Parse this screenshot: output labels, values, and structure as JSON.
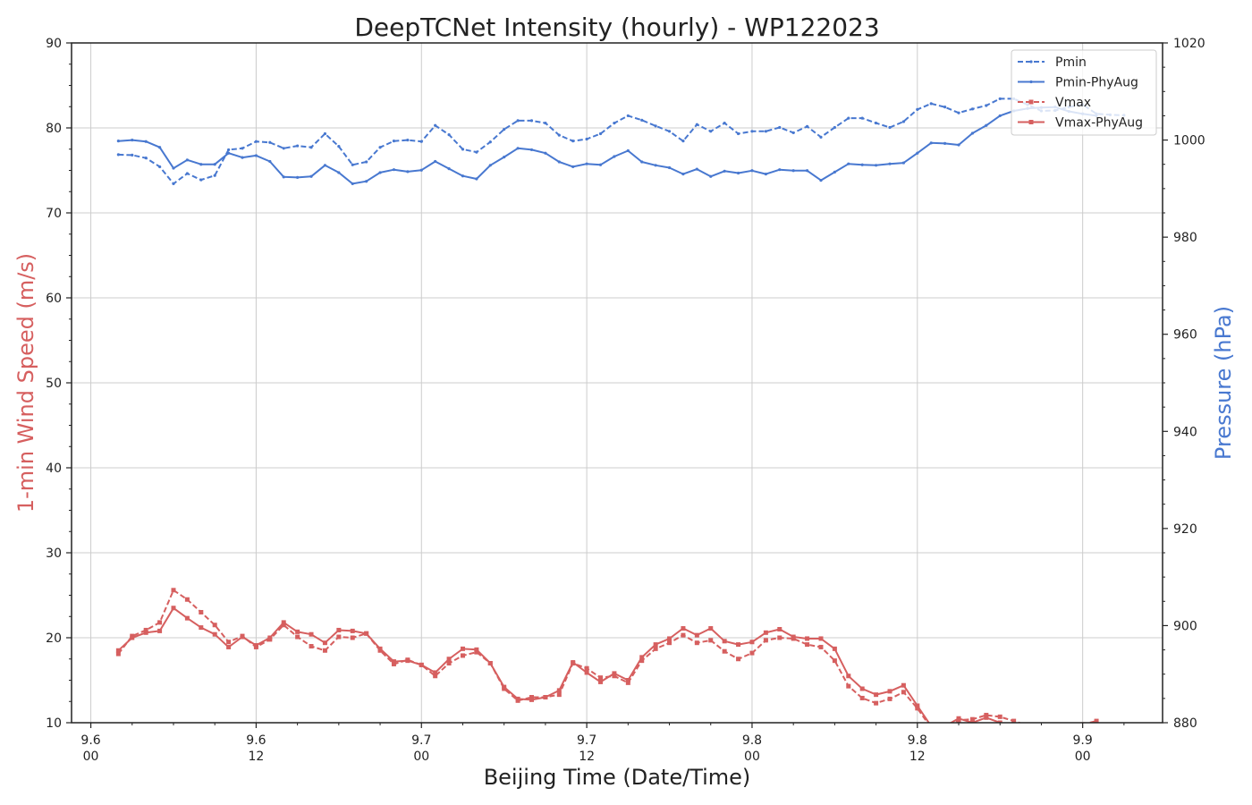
{
  "chart_data": {
    "type": "line",
    "title": "DeepTCNet Intensity (hourly) - WP122023",
    "xlabel": "Beijing Time (Date/Time)",
    "ylabel_left": "1-min Wind Speed (m/s)",
    "ylabel_right": "Pressure (hPa)",
    "x_ticks": [
      {
        "hour": 0,
        "date": "9.6",
        "time": "00"
      },
      {
        "hour": 12,
        "date": "9.6",
        "time": "12"
      },
      {
        "hour": 24,
        "date": "9.7",
        "time": "00"
      },
      {
        "hour": 36,
        "date": "9.7",
        "time": "12"
      },
      {
        "hour": 48,
        "date": "9.8",
        "time": "00"
      },
      {
        "hour": 60,
        "date": "9.8",
        "time": "12"
      },
      {
        "hour": 72,
        "date": "9.9",
        "time": "00"
      }
    ],
    "x_range_hours": [
      -1.4,
      77.8
    ],
    "ylim_left": [
      10,
      90
    ],
    "yticks_left": [
      10,
      20,
      30,
      40,
      50,
      60,
      70,
      80,
      90
    ],
    "ylim_right": [
      880,
      1020
    ],
    "yticks_right": [
      880,
      900,
      920,
      940,
      960,
      980,
      1000,
      1020
    ],
    "grid": true,
    "legend_position": "top-right",
    "colors": {
      "wind": "#d65f5f",
      "pressure": "#4878d0"
    },
    "series": [
      {
        "name": "Pmin",
        "axis": "right",
        "style": "dashed",
        "color": "#4878d0",
        "start_hour": 2,
        "values": [
          997.0,
          996.9,
          996.3,
          994.5,
          991.0,
          993.1,
          991.8,
          992.7,
          998.0,
          998.3,
          999.7,
          999.5,
          998.3,
          998.8,
          998.5,
          1001.3,
          998.7,
          994.9,
          995.5,
          998.5,
          999.8,
          1000.0,
          999.7,
          1003.0,
          1001.1,
          998.1,
          997.5,
          999.6,
          1002.2,
          1004.0,
          1004.0,
          1003.5,
          1001.0,
          999.8,
          1000.2,
          1001.3,
          1003.5,
          1005.0,
          1004.1,
          1002.9,
          1001.8,
          999.8,
          1003.2,
          1001.8,
          1003.5,
          1001.3,
          1001.8,
          1001.8,
          1002.6,
          1001.5,
          1002.8,
          1000.6,
          1002.6,
          1004.5,
          1004.5,
          1003.5,
          1002.6,
          1003.8,
          1006.3,
          1007.5,
          1006.8,
          1005.6,
          1006.4,
          1007.1,
          1008.5,
          1008.5,
          1007.3,
          1006.0,
          1006.1,
          1006.8,
          1007.3,
          1005.4,
          1005.2,
          1005.1
        ]
      },
      {
        "name": "Pmin-PhyAug",
        "axis": "right",
        "style": "solid",
        "color": "#4878d0",
        "start_hour": 2,
        "values": [
          999.8,
          1000.0,
          999.7,
          998.5,
          994.2,
          995.9,
          995.0,
          995.0,
          997.3,
          996.4,
          996.8,
          995.6,
          992.4,
          992.3,
          992.5,
          994.8,
          993.3,
          991.0,
          991.5,
          993.3,
          993.9,
          993.5,
          993.8,
          995.6,
          994.1,
          992.6,
          992.0,
          994.8,
          996.5,
          998.3,
          998.0,
          997.3,
          995.5,
          994.5,
          995.1,
          994.9,
          996.6,
          997.8,
          995.5,
          994.8,
          994.3,
          993.0,
          994.0,
          992.5,
          993.6,
          993.2,
          993.7,
          993.0,
          993.9,
          993.7,
          993.7,
          991.7,
          993.4,
          995.1,
          994.9,
          994.8,
          995.1,
          995.3,
          997.3,
          999.4,
          999.3,
          999.0,
          1001.4,
          1003.0,
          1005.0,
          1006.0,
          1006.5,
          1006.7,
          1006.8,
          1005.9,
          1005.4,
          1005.0
        ]
      },
      {
        "name": "Vmax",
        "axis": "left",
        "style": "dashed",
        "color": "#d65f5f",
        "start_hour": 2,
        "values": [
          18.1,
          20.2,
          20.9,
          21.8,
          25.6,
          24.5,
          23.0,
          21.5,
          19.5,
          20.2,
          18.9,
          19.8,
          21.5,
          20.1,
          19.0,
          18.5,
          20.1,
          20.0,
          20.5,
          18.5,
          16.9,
          17.4,
          16.8,
          15.5,
          17.0,
          17.9,
          18.3,
          17.0,
          14.0,
          12.6,
          13.0,
          13.0,
          13.3,
          17.0,
          16.4,
          15.3,
          15.5,
          14.7,
          17.3,
          18.7,
          19.4,
          20.3,
          19.4,
          19.7,
          18.4,
          17.5,
          18.2,
          19.7,
          20.0,
          19.9,
          19.2,
          18.9,
          17.3,
          14.3,
          12.9,
          12.3,
          12.8,
          13.6,
          11.7,
          9.4,
          9.7,
          10.3,
          10.4,
          10.9,
          10.7,
          10.2,
          9.7,
          9.6,
          9.6,
          9.7,
          9.8,
          10.2
        ]
      },
      {
        "name": "Vmax-PhyAug",
        "axis": "left",
        "style": "solid",
        "color": "#d65f5f",
        "start_hour": 2,
        "values": [
          18.5,
          20.0,
          20.6,
          20.8,
          23.5,
          22.3,
          21.2,
          20.4,
          18.9,
          20.1,
          19.1,
          20.0,
          21.8,
          20.7,
          20.4,
          19.4,
          20.9,
          20.8,
          20.5,
          18.7,
          17.2,
          17.3,
          16.8,
          15.9,
          17.5,
          18.7,
          18.6,
          17.0,
          14.2,
          12.8,
          12.7,
          13.0,
          13.8,
          17.1,
          15.9,
          14.8,
          15.8,
          15.0,
          17.7,
          19.2,
          19.9,
          21.1,
          20.3,
          21.1,
          19.6,
          19.2,
          19.5,
          20.6,
          21.0,
          20.1,
          19.9,
          19.9,
          18.7,
          15.5,
          14.0,
          13.3,
          13.7,
          14.4,
          12.0,
          9.6,
          9.6,
          10.5,
          10.0,
          10.6,
          10.0,
          9.3,
          9.4,
          9.4,
          9.4,
          9.5,
          9.5,
          9.6
        ]
      }
    ]
  }
}
